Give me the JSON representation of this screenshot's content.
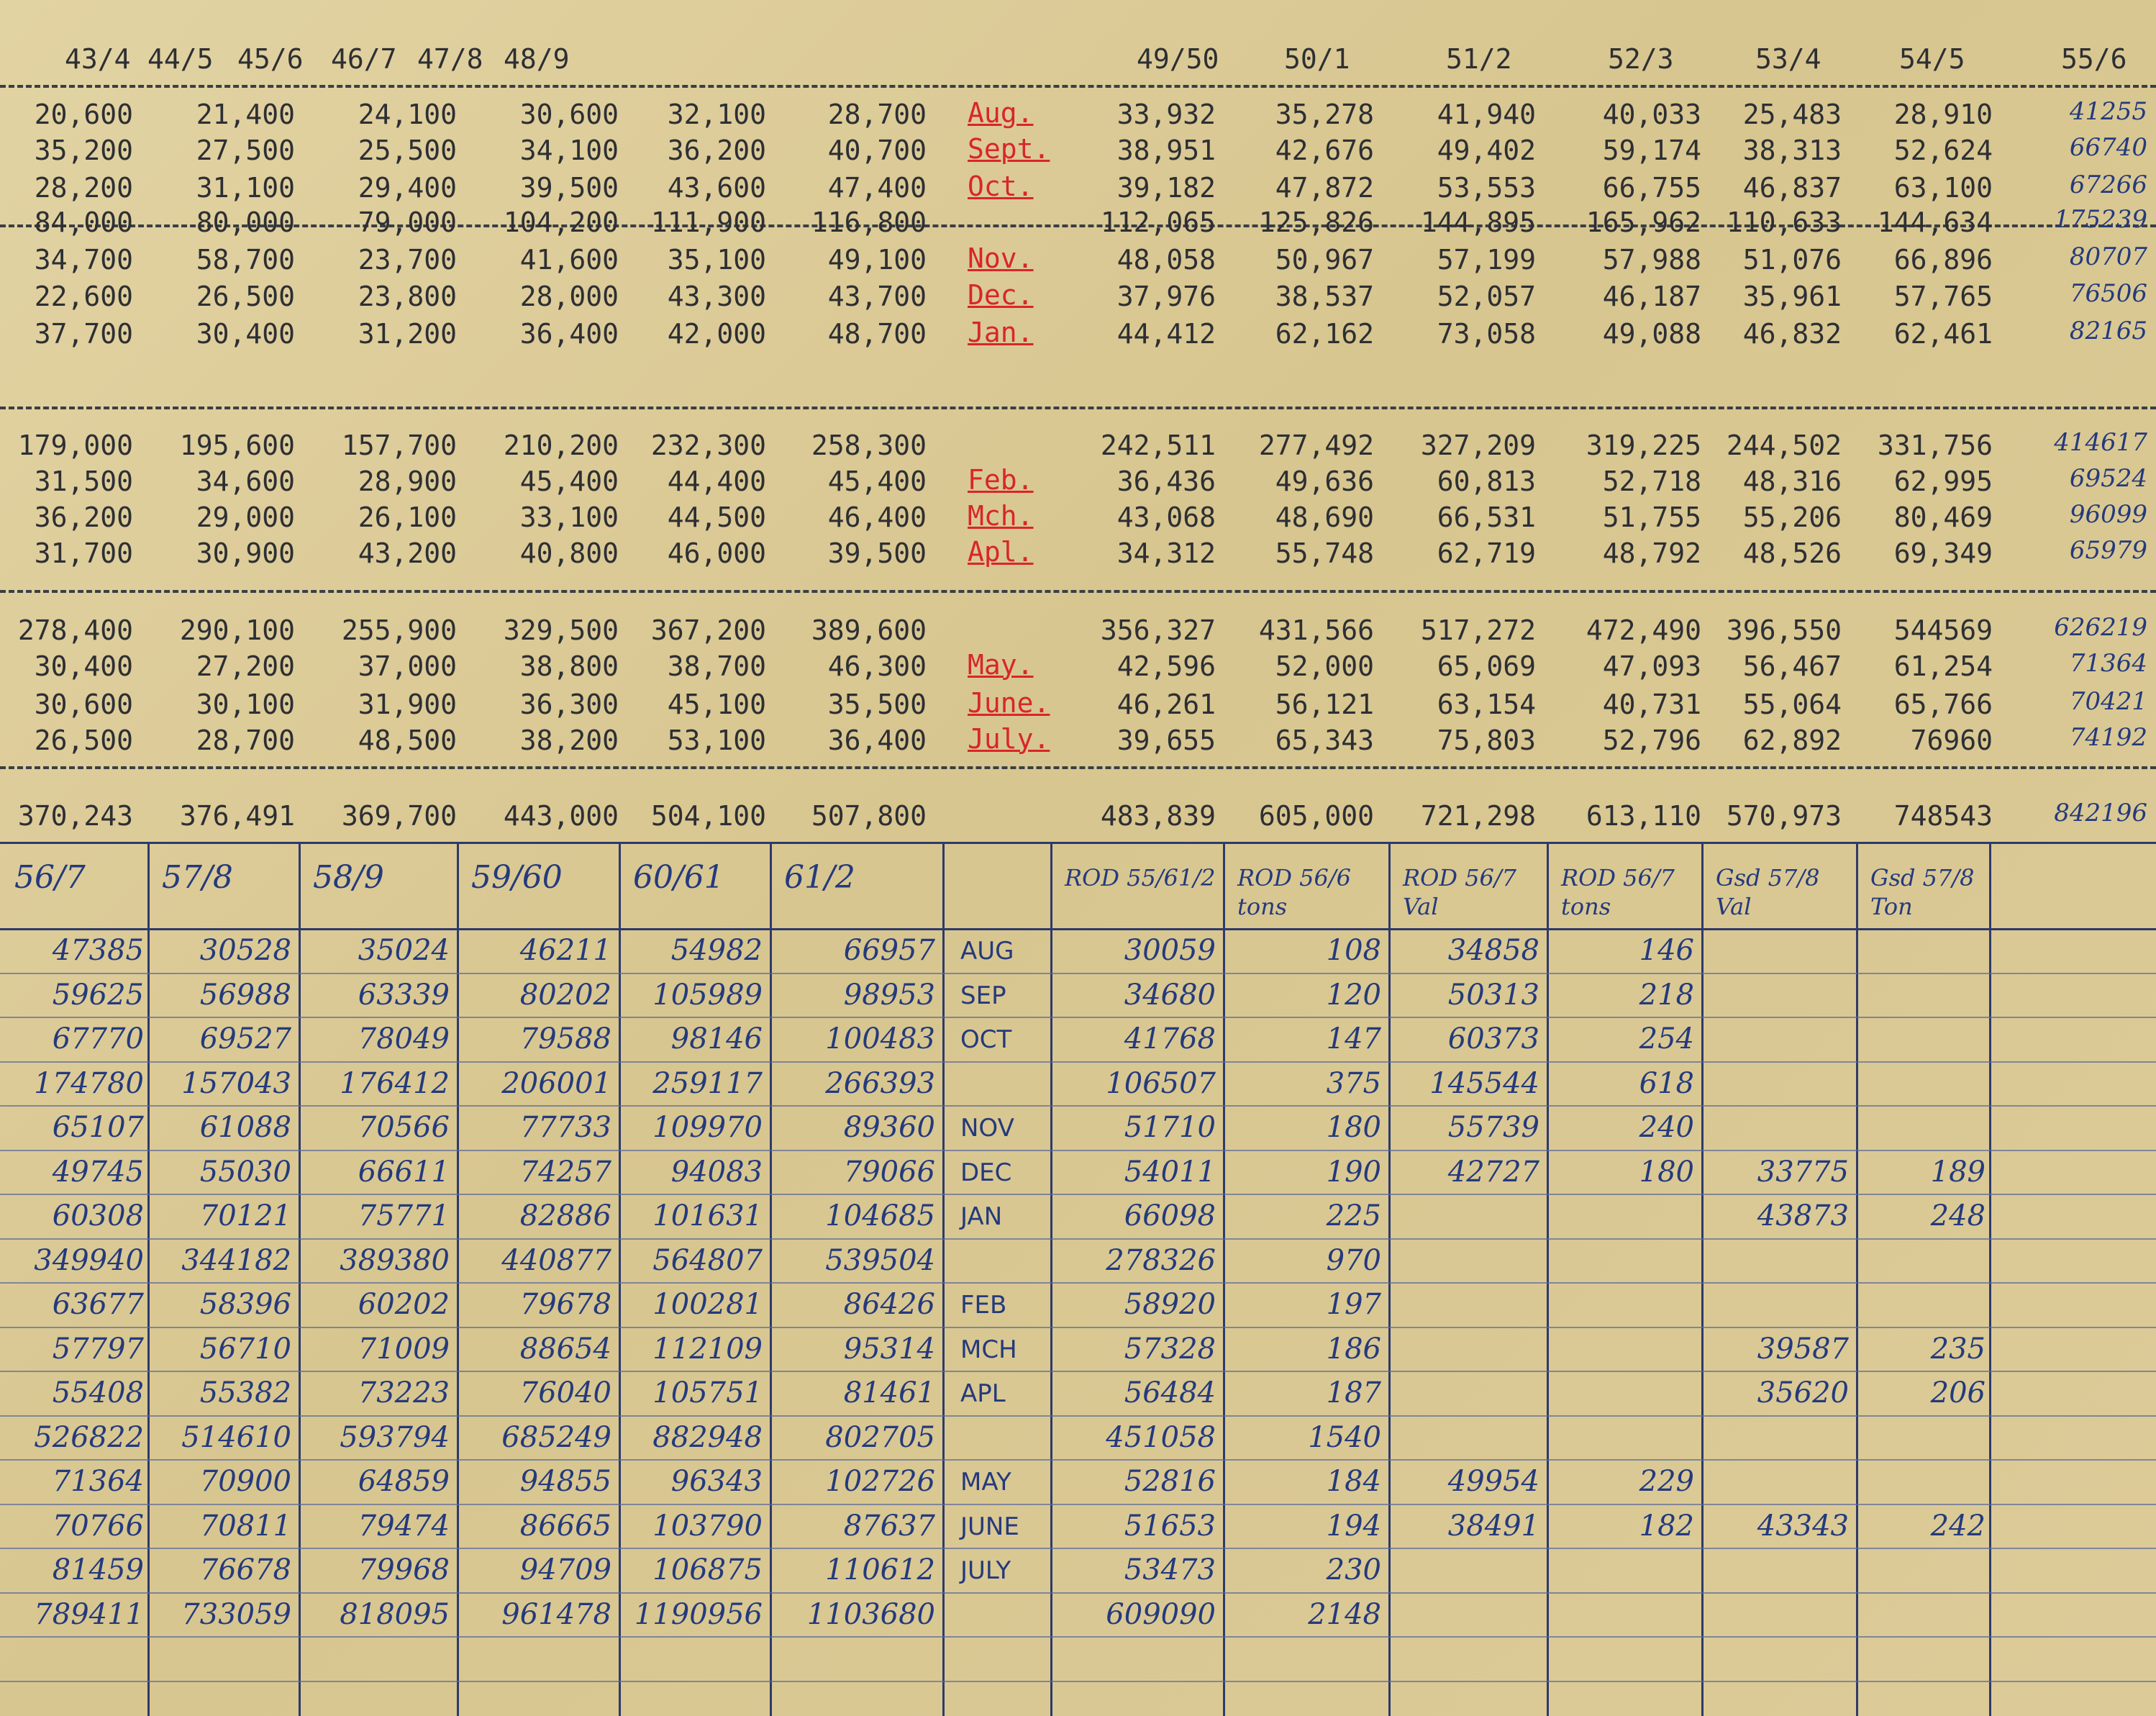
{
  "typed_headers": [
    "43/4",
    "44/5",
    "45/6",
    "46/7",
    "47/8",
    "48/9",
    "49/50",
    "50/1",
    "51/2",
    "52/3",
    "53/4",
    "54/5",
    "55/6"
  ],
  "typed_rows": [
    {
      "month": "Aug.",
      "left": [
        "20,600",
        "21,400",
        "24,100",
        "30,600",
        "32,100",
        "28,700"
      ],
      "right": [
        "33,932",
        "35,278",
        "41,940",
        "40,033",
        "25,483",
        "28,910",
        "41255"
      ]
    },
    {
      "month": "Sept.",
      "left": [
        "35,200",
        "27,500",
        "25,500",
        "34,100",
        "36,200",
        "40,700"
      ],
      "right": [
        "38,951",
        "42,676",
        "49,402",
        "59,174",
        "38,313",
        "52,624",
        "66740"
      ]
    },
    {
      "month": "Oct.",
      "left": [
        "28,200",
        "31,100",
        "29,400",
        "39,500",
        "43,600",
        "47,400"
      ],
      "right": [
        "39,182",
        "47,872",
        "53,553",
        "66,755",
        "46,837",
        "63,100",
        "67266"
      ]
    },
    {
      "month": "",
      "left": [
        "84,000",
        "80,000",
        "79,000",
        "104,200",
        "111,900",
        "116,800"
      ],
      "right": [
        "112,065",
        "125,826",
        "144,895",
        "165,962",
        "110,633",
        "144,634",
        "175239"
      ]
    },
    {
      "month": "Nov.",
      "left": [
        "34,700",
        "58,700",
        "23,700",
        "41,600",
        "35,100",
        "49,100"
      ],
      "right": [
        "48,058",
        "50,967",
        "57,199",
        "57,988",
        "51,076",
        "66,896",
        "80707"
      ]
    },
    {
      "month": "Dec.",
      "left": [
        "22,600",
        "26,500",
        "23,800",
        "28,000",
        "43,300",
        "43,700"
      ],
      "right": [
        "37,976",
        "38,537",
        "52,057",
        "46,187",
        "35,961",
        "57,765",
        "76506"
      ]
    },
    {
      "month": "Jan.",
      "left": [
        "37,700",
        "30,400",
        "31,200",
        "36,400",
        "42,000",
        "48,700"
      ],
      "right": [
        "44,412",
        "62,162",
        "73,058",
        "49,088",
        "46,832",
        "62,461",
        "82165"
      ]
    },
    {
      "month": "",
      "left": [
        "179,000",
        "195,600",
        "157,700",
        "210,200",
        "232,300",
        "258,300"
      ],
      "right": [
        "242,511",
        "277,492",
        "327,209",
        "319,225",
        "244,502",
        "331,756",
        "414617"
      ]
    },
    {
      "month": "Feb.",
      "left": [
        "31,500",
        "34,600",
        "28,900",
        "45,400",
        "44,400",
        "45,400"
      ],
      "right": [
        "36,436",
        "49,636",
        "60,813",
        "52,718",
        "48,316",
        "62,995",
        "69524"
      ]
    },
    {
      "month": "Mch.",
      "left": [
        "36,200",
        "29,000",
        "26,100",
        "33,100",
        "44,500",
        "46,400"
      ],
      "right": [
        "43,068",
        "48,690",
        "66,531",
        "51,755",
        "55,206",
        "80,469",
        "96099"
      ]
    },
    {
      "month": "Apl.",
      "left": [
        "31,700",
        "30,900",
        "43,200",
        "40,800",
        "46,000",
        "39,500"
      ],
      "right": [
        "34,312",
        "55,748",
        "62,719",
        "48,792",
        "48,526",
        "69,349",
        "65979"
      ]
    },
    {
      "month": "",
      "left": [
        "278,400",
        "290,100",
        "255,900",
        "329,500",
        "367,200",
        "389,600"
      ],
      "right": [
        "356,327",
        "431,566",
        "517,272",
        "472,490",
        "396,550",
        "544569",
        "626219"
      ]
    },
    {
      "month": "May.",
      "left": [
        "30,400",
        "27,200",
        "37,000",
        "38,800",
        "38,700",
        "46,300"
      ],
      "right": [
        "42,596",
        "52,000",
        "65,069",
        "47,093",
        "56,467",
        "61,254",
        "71364"
      ]
    },
    {
      "month": "June.",
      "left": [
        "30,600",
        "30,100",
        "31,900",
        "36,300",
        "45,100",
        "35,500"
      ],
      "right": [
        "46,261",
        "56,121",
        "63,154",
        "40,731",
        "55,064",
        "65,766",
        "70421"
      ]
    },
    {
      "month": "July.",
      "left": [
        "26,500",
        "28,700",
        "48,500",
        "38,200",
        "53,100",
        "36,400"
      ],
      "right": [
        "39,655",
        "65,343",
        "75,803",
        "52,796",
        "62,892",
        "76960",
        "74192"
      ]
    },
    {
      "month": "",
      "left": [
        "370,243",
        "376,491",
        "369,700",
        "443,000",
        "504,100",
        "507,800"
      ],
      "right": [
        "483,839",
        "605,000",
        "721,298",
        "613,110",
        "570,973",
        "748543",
        "842196"
      ]
    }
  ],
  "hand_headers": [
    "56/7",
    "57/8",
    "58/9",
    "59/60",
    "60/61",
    "61/2",
    "",
    "ROD 55/61/2",
    "ROD 56/6 tons",
    "ROD 56/7 Val",
    "ROD 56/7 tons",
    "Gsd 57/8 Val",
    "Gsd 57/8 Ton"
  ],
  "hand_rows": [
    {
      "month": "AUG",
      "cells": [
        "47385",
        "30528",
        "35024",
        "46211",
        "54982",
        "66957",
        "30059",
        "108",
        "34858",
        "146",
        "",
        ""
      ]
    },
    {
      "month": "SEP",
      "cells": [
        "59625",
        "56988",
        "63339",
        "80202",
        "105989",
        "98953",
        "34680",
        "120",
        "50313",
        "218",
        "",
        ""
      ]
    },
    {
      "month": "OCT",
      "cells": [
        "67770",
        "69527",
        "78049",
        "79588",
        "98146",
        "100483",
        "41768",
        "147",
        "60373",
        "254",
        "",
        ""
      ]
    },
    {
      "month": "",
      "cells": [
        "174780",
        "157043",
        "176412",
        "206001",
        "259117",
        "266393",
        "106507",
        "375",
        "145544",
        "618",
        "",
        ""
      ]
    },
    {
      "month": "NOV",
      "cells": [
        "65107",
        "61088",
        "70566",
        "77733",
        "109970",
        "89360",
        "51710",
        "180",
        "55739",
        "240",
        "",
        ""
      ]
    },
    {
      "month": "DEC",
      "cells": [
        "49745",
        "55030",
        "66611",
        "74257",
        "94083",
        "79066",
        "54011",
        "190",
        "42727",
        "180",
        "33775",
        "189"
      ]
    },
    {
      "month": "JAN",
      "cells": [
        "60308",
        "70121",
        "75771",
        "82886",
        "101631",
        "104685",
        "66098",
        "225",
        "",
        "",
        "43873",
        "248"
      ]
    },
    {
      "month": "",
      "cells": [
        "349940",
        "344182",
        "389380",
        "440877",
        "564807",
        "539504",
        "278326",
        "970",
        "",
        "",
        "",
        ""
      ]
    },
    {
      "month": "FEB",
      "cells": [
        "63677",
        "58396",
        "60202",
        "79678",
        "100281",
        "86426",
        "58920",
        "197",
        "",
        "",
        "",
        ""
      ]
    },
    {
      "month": "MCH",
      "cells": [
        "57797",
        "56710",
        "71009",
        "88654",
        "112109",
        "95314",
        "57328",
        "186",
        "",
        "",
        "39587",
        "235"
      ]
    },
    {
      "month": "APL",
      "cells": [
        "55408",
        "55382",
        "73223",
        "76040",
        "105751",
        "81461",
        "56484",
        "187",
        "",
        "",
        "35620",
        "206"
      ]
    },
    {
      "month": "",
      "cells": [
        "526822",
        "514610",
        "593794",
        "685249",
        "882948",
        "802705",
        "451058",
        "1540",
        "",
        "",
        "",
        ""
      ]
    },
    {
      "month": "MAY",
      "cells": [
        "71364",
        "70900",
        "64859",
        "94855",
        "96343",
        "102726",
        "52816",
        "184",
        "49954",
        "229",
        "",
        ""
      ]
    },
    {
      "month": "JUNE",
      "cells": [
        "70766",
        "70811",
        "79474",
        "86665",
        "103790",
        "87637",
        "51653",
        "194",
        "38491",
        "182",
        "43343",
        "242"
      ]
    },
    {
      "month": "JULY",
      "cells": [
        "81459",
        "76678",
        "79968",
        "94709",
        "106875",
        "110612",
        "53473",
        "230",
        "",
        "",
        "",
        ""
      ]
    },
    {
      "month": "",
      "cells": [
        "789411",
        "733059",
        "818095",
        "961478",
        "1190956",
        "1103680",
        "609090",
        "2148",
        "",
        "",
        "",
        ""
      ]
    }
  ]
}
